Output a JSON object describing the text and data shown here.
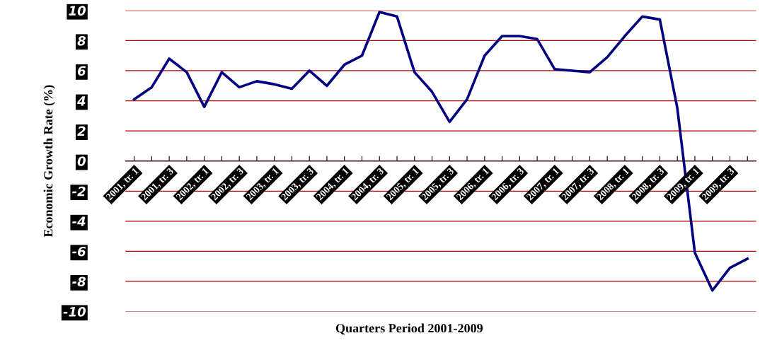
{
  "chart_data": {
    "type": "line",
    "xlabel": "Quarters Period 2001-2009",
    "ylabel": "Economic Growth Rate (%)",
    "categories": [
      "2001, tr. 1",
      null,
      "2001, tr. 3",
      null,
      "2002, tr. 1",
      null,
      "2002, tr. 3",
      null,
      "2003, tr. 1",
      null,
      "2003, tr. 3",
      null,
      "2004, tr. 1",
      null,
      "2004, tr. 3",
      null,
      "2005, tr. 1",
      null,
      "2005, tr. 3",
      null,
      "2006, tr. 1",
      null,
      "2006, tr. 3",
      null,
      "2007, tr. 1",
      null,
      "2007, tr. 3",
      null,
      "2008, tr. 1",
      null,
      "2008, tr. 3",
      null,
      "2009, tr. 1",
      null,
      "2009, tr. 3",
      null
    ],
    "series": [
      {
        "color": "#000080",
        "values": [
          4.1,
          4.9,
          6.8,
          5.9,
          3.6,
          5.9,
          4.9,
          5.3,
          5.1,
          4.8,
          6.0,
          5.0,
          6.4,
          7.0,
          9.9,
          9.6,
          5.9,
          4.6,
          2.6,
          4.1,
          7.0,
          8.3,
          8.3,
          8.1,
          6.1,
          6.0,
          5.9,
          6.9,
          8.3,
          9.6,
          9.4,
          3.5,
          -6.1,
          -8.6,
          -7.1,
          -6.5
        ]
      }
    ],
    "ylim": [
      -10,
      10
    ],
    "yticks": [
      -10,
      -8,
      -6,
      -4,
      -2,
      0,
      2,
      4,
      6,
      8,
      10
    ],
    "grid": "y",
    "legend": false,
    "marker": "none",
    "line_style": "solid"
  }
}
